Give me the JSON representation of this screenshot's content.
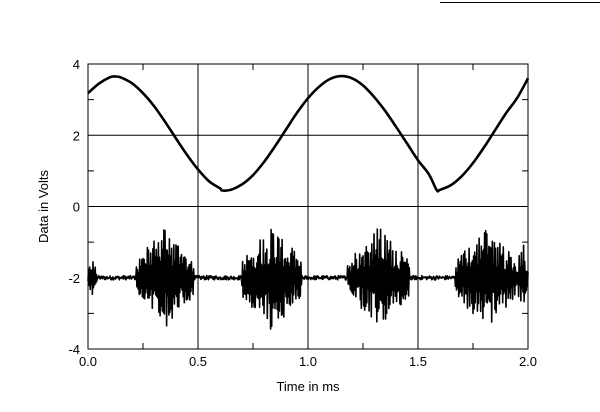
{
  "chart_data": {
    "type": "line",
    "title": "",
    "xlabel": "Time in ms",
    "ylabel": "Data in Volts",
    "xlim": [
      0.0,
      2.0
    ],
    "ylim": [
      -4,
      4
    ],
    "x_ticks": [
      "0.0",
      "0.5",
      "1.0",
      "1.5",
      "2.0"
    ],
    "y_ticks": [
      "4",
      "2",
      "0",
      "-2",
      "-4"
    ],
    "x_grid": [
      0.5,
      1.0,
      1.5
    ],
    "y_grid": [
      2,
      0,
      -2
    ],
    "grid": true,
    "legend": "none",
    "series": [
      {
        "x": [
          0.0,
          0.05,
          0.1,
          0.125,
          0.15,
          0.2,
          0.25,
          0.3,
          0.35,
          0.4,
          0.45,
          0.5,
          0.55,
          0.6,
          0.61,
          0.65,
          0.7,
          0.75,
          0.8,
          0.85,
          0.9,
          0.95,
          1.0,
          1.05,
          1.1,
          1.15,
          1.2,
          1.25,
          1.3,
          1.35,
          1.4,
          1.45,
          1.5,
          1.55,
          1.585,
          1.6,
          1.65,
          1.7,
          1.75,
          1.8,
          1.85,
          1.9,
          1.95,
          2.0
        ],
        "y": [
          3.18,
          3.45,
          3.63,
          3.65,
          3.62,
          3.46,
          3.18,
          2.82,
          2.38,
          1.91,
          1.45,
          1.04,
          0.71,
          0.51,
          0.45,
          0.47,
          0.62,
          0.88,
          1.25,
          1.69,
          2.16,
          2.63,
          3.04,
          3.36,
          3.58,
          3.66,
          3.6,
          3.4,
          3.08,
          2.69,
          2.24,
          1.77,
          1.3,
          0.9,
          0.46,
          0.47,
          0.6,
          0.86,
          1.22,
          1.66,
          2.14,
          2.62,
          3.04,
          3.6
        ]
      },
      {
        "x": [
          0.0,
          0.25,
          0.45,
          0.65,
          0.75,
          0.95,
          1.15,
          1.23,
          1.43,
          1.63,
          1.72,
          1.92,
          2.0
        ],
        "y": [
          -2.0,
          -2.0,
          -2.0,
          -2.0,
          -2.0,
          -2.0,
          -2.0,
          -2.0,
          -2.0,
          -2.0,
          -2.0,
          -2.0,
          -2.0
        ],
        "bursts": [
          {
            "x_start": 0.0,
            "x_end": 0.04,
            "y_min": -2.55,
            "y_max": -1.45
          },
          {
            "x_start": 0.22,
            "x_end": 0.48,
            "y_min": -3.35,
            "y_max": -0.55
          },
          {
            "x_start": 0.7,
            "x_end": 0.97,
            "y_min": -3.5,
            "y_max": -0.6
          },
          {
            "x_start": 1.18,
            "x_end": 1.46,
            "y_min": -3.3,
            "y_max": -0.55
          },
          {
            "x_start": 1.67,
            "x_end": 1.95,
            "y_min": -3.45,
            "y_max": -0.6
          },
          {
            "x_start": 1.95,
            "x_end": 2.0,
            "y_min": -2.85,
            "y_max": -0.9
          }
        ]
      }
    ]
  }
}
